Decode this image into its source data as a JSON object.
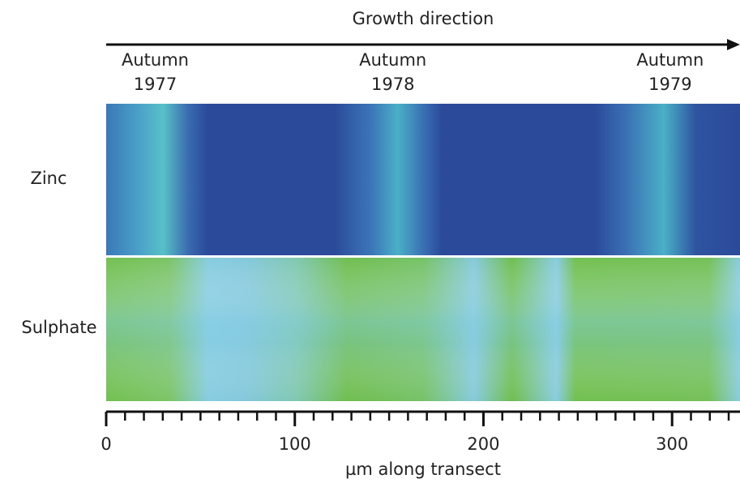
{
  "chart_data": {
    "type": "heatmap",
    "title": "Growth direction",
    "x_label": "µm along transect",
    "rows": [
      "Zinc",
      "Sulphate"
    ],
    "annotations": [
      {
        "text": [
          "Autumn",
          "1977"
        ],
        "x": 26
      },
      {
        "text": [
          "Autumn",
          "1978"
        ],
        "x": 152
      },
      {
        "text": [
          "Autumn",
          "1979"
        ],
        "x": 299
      }
    ],
    "xlim": [
      0,
      336
    ],
    "xticks": [
      0,
      100,
      200,
      300
    ],
    "minor_xticks": [
      10,
      20,
      30,
      40,
      50,
      60,
      70,
      80,
      90,
      110,
      120,
      130,
      140,
      150,
      160,
      170,
      180,
      190,
      210,
      220,
      230,
      240,
      250,
      260,
      270,
      280,
      290,
      310,
      320,
      330
    ]
  }
}
